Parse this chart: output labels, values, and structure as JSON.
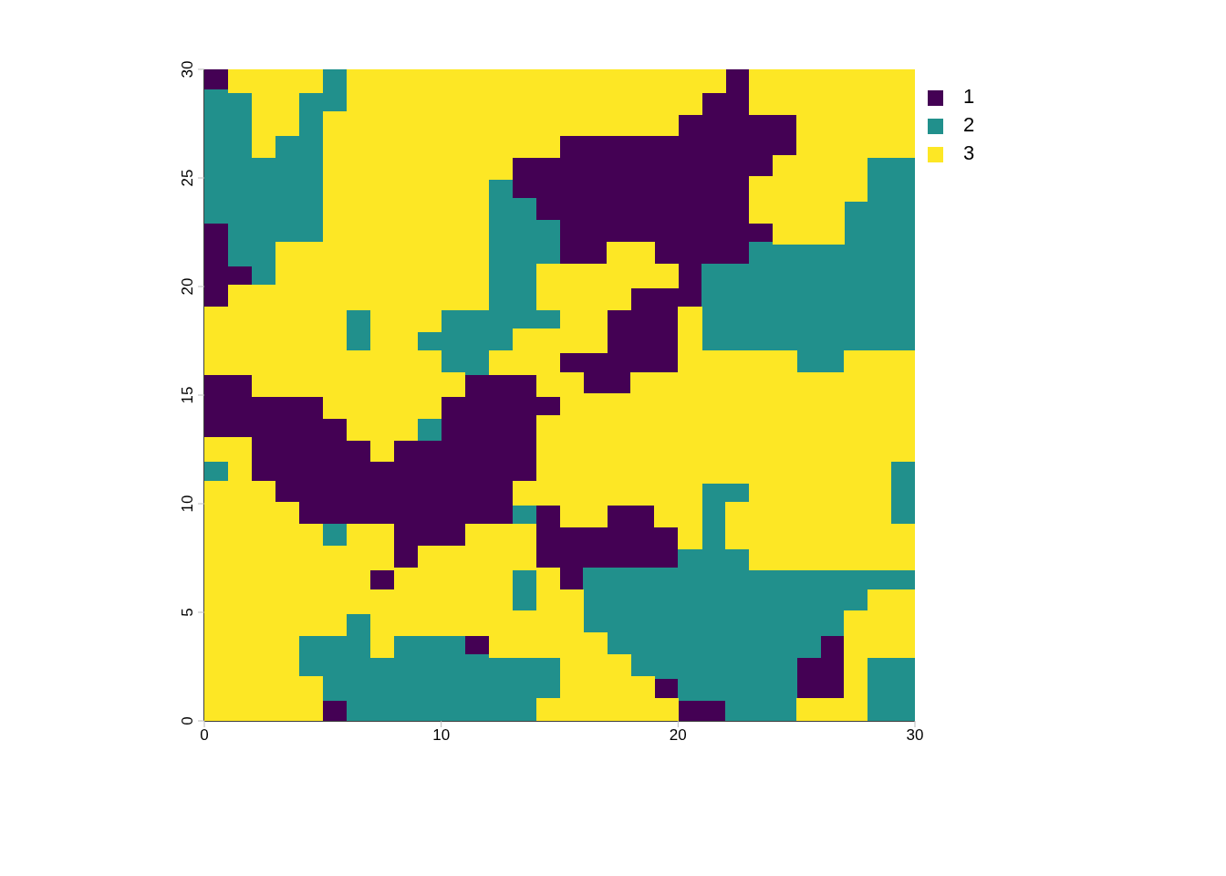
{
  "chart_data": {
    "type": "scatter",
    "xlim": [
      0,
      30
    ],
    "xticks": [
      0,
      10,
      20,
      30
    ],
    "ylim": [
      0,
      30
    ],
    "yticks": [
      0,
      5,
      10,
      15,
      20,
      25,
      30
    ],
    "legend": "top right",
    "marker": "square",
    "series": [
      {
        "name": "1",
        "color": "#440154",
        "x": [
          0.5,
          22.5,
          21.5,
          22.5,
          20.5,
          21.5,
          22.5,
          23.5,
          24.5,
          15.5,
          16.5,
          17.5,
          18.5,
          19.5,
          20.5,
          21.5,
          22.5,
          23.5,
          24.5,
          13.5,
          14.5,
          15.5,
          16.5,
          17.5,
          18.5,
          19.5,
          20.5,
          21.5,
          22.5,
          23.5,
          13.5,
          14.5,
          15.5,
          16.5,
          17.5,
          18.5,
          19.5,
          20.5,
          21.5,
          22.5,
          14.5,
          15.5,
          16.5,
          17.5,
          18.5,
          19.5,
          20.5,
          21.5,
          22.5,
          0.5,
          15.5,
          16.5,
          17.5,
          18.5,
          19.5,
          20.5,
          21.5,
          22.5,
          23.5,
          0.5,
          15.5,
          16.5,
          19.5,
          20.5,
          21.5,
          22.5,
          0.5,
          1.5,
          20.5,
          0.5,
          18.5,
          19.5,
          20.5,
          17.5,
          18.5,
          19.5,
          17.5,
          18.5,
          19.5,
          15.5,
          16.5,
          17.5,
          18.5,
          19.5,
          0.5,
          1.5,
          11.5,
          12.5,
          13.5,
          16.5,
          17.5,
          0.5,
          1.5,
          2.5,
          3.5,
          4.5,
          10.5,
          11.5,
          12.5,
          13.5,
          14.5,
          0.5,
          1.5,
          2.5,
          3.5,
          4.5,
          5.5,
          10.5,
          11.5,
          12.5,
          13.5,
          2.5,
          3.5,
          4.5,
          5.5,
          6.5,
          8.5,
          9.5,
          10.5,
          11.5,
          12.5,
          13.5,
          2.5,
          3.5,
          4.5,
          5.5,
          6.5,
          7.5,
          8.5,
          9.5,
          10.5,
          11.5,
          12.5,
          13.5,
          3.5,
          4.5,
          5.5,
          6.5,
          7.5,
          8.5,
          9.5,
          10.5,
          11.5,
          12.5,
          4.5,
          5.5,
          6.5,
          7.5,
          8.5,
          9.5,
          10.5,
          11.5,
          12.5,
          14.5,
          17.5,
          18.5,
          8.5,
          9.5,
          10.5,
          14.5,
          15.5,
          16.5,
          17.5,
          18.5,
          19.5,
          8.5,
          14.5,
          15.5,
          16.5,
          17.5,
          18.5,
          19.5,
          7.5,
          15.5,
          11.5,
          26.5,
          25.5,
          26.5,
          19.5,
          25.5,
          26.5,
          5.5,
          20.5,
          21.5
        ],
        "values": [
          29.5,
          29.5,
          28.5,
          28.5,
          27.5,
          27.5,
          27.5,
          27.5,
          27.5,
          26.5,
          26.5,
          26.5,
          26.5,
          26.5,
          26.5,
          26.5,
          26.5,
          26.5,
          26.5,
          25.5,
          25.5,
          25.5,
          25.5,
          25.5,
          25.5,
          25.5,
          25.5,
          25.5,
          25.5,
          25.5,
          24.5,
          24.5,
          24.5,
          24.5,
          24.5,
          24.5,
          24.5,
          24.5,
          24.5,
          24.5,
          23.5,
          23.5,
          23.5,
          23.5,
          23.5,
          23.5,
          23.5,
          23.5,
          23.5,
          22.5,
          22.5,
          22.5,
          22.5,
          22.5,
          22.5,
          22.5,
          22.5,
          22.5,
          22.5,
          21.5,
          21.5,
          21.5,
          21.5,
          21.5,
          21.5,
          21.5,
          20.5,
          20.5,
          20.5,
          19.5,
          19.5,
          19.5,
          19.5,
          18.5,
          18.5,
          18.5,
          17.5,
          17.5,
          17.5,
          16.5,
          16.5,
          16.5,
          16.5,
          16.5,
          15.5,
          15.5,
          15.5,
          15.5,
          15.5,
          15.5,
          15.5,
          14.5,
          14.5,
          14.5,
          14.5,
          14.5,
          14.5,
          14.5,
          14.5,
          14.5,
          14.5,
          13.5,
          13.5,
          13.5,
          13.5,
          13.5,
          13.5,
          13.5,
          13.5,
          13.5,
          13.5,
          12.5,
          12.5,
          12.5,
          12.5,
          12.5,
          12.5,
          12.5,
          12.5,
          12.5,
          12.5,
          12.5,
          11.5,
          11.5,
          11.5,
          11.5,
          11.5,
          11.5,
          11.5,
          11.5,
          11.5,
          11.5,
          11.5,
          11.5,
          10.5,
          10.5,
          10.5,
          10.5,
          10.5,
          10.5,
          10.5,
          10.5,
          10.5,
          10.5,
          9.5,
          9.5,
          9.5,
          9.5,
          9.5,
          9.5,
          9.5,
          9.5,
          9.5,
          9.5,
          9.5,
          9.5,
          8.5,
          8.5,
          8.5,
          8.5,
          8.5,
          8.5,
          8.5,
          8.5,
          8.5,
          7.5,
          7.5,
          7.5,
          7.5,
          7.5,
          7.5,
          7.5,
          6.5,
          6.5,
          3.5,
          3.5,
          2.5,
          2.5,
          1.5,
          1.5,
          1.5,
          0.5,
          0.5,
          0.5
        ]
      },
      {
        "name": "2",
        "color": "#21908c",
        "x": [
          5.5,
          0.5,
          1.5,
          4.5,
          5.5,
          0.5,
          1.5,
          4.5,
          0.5,
          1.5,
          3.5,
          4.5,
          0.5,
          1.5,
          2.5,
          3.5,
          4.5,
          28.5,
          29.5,
          0.5,
          1.5,
          2.5,
          3.5,
          4.5,
          12.5,
          28.5,
          29.5,
          0.5,
          1.5,
          2.5,
          3.5,
          4.5,
          12.5,
          13.5,
          27.5,
          28.5,
          29.5,
          1.5,
          2.5,
          3.5,
          4.5,
          12.5,
          13.5,
          14.5,
          27.5,
          28.5,
          29.5,
          1.5,
          2.5,
          12.5,
          13.5,
          14.5,
          23.5,
          24.5,
          25.5,
          26.5,
          27.5,
          28.5,
          29.5,
          2.5,
          12.5,
          13.5,
          21.5,
          22.5,
          23.5,
          24.5,
          25.5,
          26.5,
          27.5,
          28.5,
          29.5,
          12.5,
          13.5,
          21.5,
          22.5,
          23.5,
          24.5,
          25.5,
          26.5,
          27.5,
          28.5,
          29.5,
          6.5,
          10.5,
          11.5,
          12.5,
          13.5,
          14.5,
          21.5,
          22.5,
          23.5,
          24.5,
          25.5,
          26.5,
          27.5,
          28.5,
          29.5,
          6.5,
          9.5,
          10.5,
          11.5,
          12.5,
          21.5,
          22.5,
          23.5,
          24.5,
          25.5,
          26.5,
          27.5,
          28.5,
          29.5,
          10.5,
          11.5,
          25.5,
          26.5,
          9.5,
          0.5,
          29.5,
          21.5,
          22.5,
          29.5,
          13.5,
          21.5,
          29.5,
          5.5,
          21.5,
          20.5,
          21.5,
          22.5,
          13.5,
          16.5,
          17.5,
          18.5,
          19.5,
          20.5,
          21.5,
          22.5,
          23.5,
          24.5,
          25.5,
          26.5,
          27.5,
          28.5,
          29.5,
          13.5,
          16.5,
          17.5,
          18.5,
          19.5,
          20.5,
          21.5,
          22.5,
          23.5,
          24.5,
          25.5,
          26.5,
          27.5,
          6.5,
          16.5,
          17.5,
          18.5,
          19.5,
          20.5,
          21.5,
          22.5,
          23.5,
          24.5,
          25.5,
          26.5,
          4.5,
          5.5,
          6.5,
          8.5,
          9.5,
          10.5,
          17.5,
          18.5,
          19.5,
          20.5,
          21.5,
          22.5,
          23.5,
          24.5,
          25.5,
          4.5,
          5.5,
          6.5,
          7.5,
          8.5,
          9.5,
          10.5,
          11.5,
          12.5,
          13.5,
          14.5,
          18.5,
          19.5,
          20.5,
          21.5,
          22.5,
          23.5,
          24.5,
          28.5,
          29.5,
          5.5,
          6.5,
          7.5,
          8.5,
          9.5,
          10.5,
          11.5,
          12.5,
          13.5,
          14.5,
          20.5,
          21.5,
          22.5,
          23.5,
          24.5,
          28.5,
          29.5,
          6.5,
          7.5,
          8.5,
          9.5,
          10.5,
          11.5,
          12.5,
          13.5,
          22.5,
          23.5,
          24.5,
          28.5,
          29.5
        ],
        "values": [
          29.5,
          28.5,
          28.5,
          28.5,
          28.5,
          27.5,
          27.5,
          27.5,
          26.5,
          26.5,
          26.5,
          26.5,
          25.5,
          25.5,
          25.5,
          25.5,
          25.5,
          25.5,
          25.5,
          24.5,
          24.5,
          24.5,
          24.5,
          24.5,
          24.5,
          24.5,
          24.5,
          23.5,
          23.5,
          23.5,
          23.5,
          23.5,
          23.5,
          23.5,
          23.5,
          23.5,
          23.5,
          22.5,
          22.5,
          22.5,
          22.5,
          22.5,
          22.5,
          22.5,
          22.5,
          22.5,
          22.5,
          21.5,
          21.5,
          21.5,
          21.5,
          21.5,
          21.5,
          21.5,
          21.5,
          21.5,
          21.5,
          21.5,
          21.5,
          20.5,
          20.5,
          20.5,
          20.5,
          20.5,
          20.5,
          20.5,
          20.5,
          20.5,
          20.5,
          20.5,
          20.5,
          19.5,
          19.5,
          19.5,
          19.5,
          19.5,
          19.5,
          19.5,
          19.5,
          19.5,
          19.5,
          19.5,
          18.5,
          18.5,
          18.5,
          18.5,
          18.5,
          18.5,
          18.5,
          18.5,
          18.5,
          18.5,
          18.5,
          18.5,
          18.5,
          18.5,
          18.5,
          17.5,
          17.5,
          17.5,
          17.5,
          17.5,
          17.5,
          17.5,
          17.5,
          17.5,
          17.5,
          17.5,
          17.5,
          17.5,
          17.5,
          16.5,
          16.5,
          16.5,
          16.5,
          13.5,
          11.5,
          11.5,
          10.5,
          10.5,
          10.5,
          9.5,
          9.5,
          9.5,
          8.5,
          8.5,
          7.5,
          7.5,
          7.5,
          6.5,
          6.5,
          6.5,
          6.5,
          6.5,
          6.5,
          6.5,
          6.5,
          6.5,
          6.5,
          6.5,
          6.5,
          6.5,
          6.5,
          6.5,
          5.5,
          5.5,
          5.5,
          5.5,
          5.5,
          5.5,
          5.5,
          5.5,
          5.5,
          5.5,
          5.5,
          5.5,
          5.5,
          4.5,
          4.5,
          4.5,
          4.5,
          4.5,
          4.5,
          4.5,
          4.5,
          4.5,
          4.5,
          4.5,
          4.5,
          3.5,
          3.5,
          3.5,
          3.5,
          3.5,
          3.5,
          3.5,
          3.5,
          3.5,
          3.5,
          3.5,
          3.5,
          3.5,
          3.5,
          3.5,
          2.5,
          2.5,
          2.5,
          2.5,
          2.5,
          2.5,
          2.5,
          2.5,
          2.5,
          2.5,
          2.5,
          2.5,
          2.5,
          2.5,
          2.5,
          2.5,
          2.5,
          2.5,
          2.5,
          2.5,
          1.5,
          1.5,
          1.5,
          1.5,
          1.5,
          1.5,
          1.5,
          1.5,
          1.5,
          1.5,
          1.5,
          1.5,
          1.5,
          1.5,
          1.5,
          1.5,
          1.5,
          0.5,
          0.5,
          0.5,
          0.5,
          0.5,
          0.5,
          0.5,
          0.5,
          0.5,
          0.5,
          0.5,
          0.5,
          0.5
        ]
      },
      {
        "name": "3",
        "color": "#fde725",
        "x": [
          1.5,
          2.5,
          3.5,
          4.5,
          6.5,
          7.5,
          8.5,
          9.5,
          10.5,
          11.5,
          12.5,
          13.5,
          14.5,
          15.5,
          16.5,
          17.5,
          18.5,
          19.5,
          20.5,
          21.5,
          23.5,
          24.5,
          25.5,
          26.5,
          27.5,
          28.5,
          29.5,
          2.5,
          3.5,
          6.5,
          7.5,
          8.5,
          9.5,
          10.5,
          11.5,
          12.5,
          13.5,
          14.5,
          15.5,
          16.5,
          17.5,
          18.5,
          19.5,
          20.5,
          23.5,
          24.5,
          25.5,
          26.5,
          27.5,
          28.5,
          29.5,
          2.5,
          3.5,
          5.5,
          6.5,
          7.5,
          8.5,
          9.5,
          10.5,
          11.5,
          12.5,
          13.5,
          14.5,
          15.5,
          16.5,
          17.5,
          18.5,
          19.5,
          25.5,
          26.5,
          27.5,
          28.5,
          29.5,
          2.5,
          5.5,
          6.5,
          7.5,
          8.5,
          9.5,
          10.5,
          11.5,
          12.5,
          13.5,
          14.5,
          25.5,
          26.5,
          27.5,
          28.5,
          29.5,
          5.5,
          6.5,
          7.5,
          8.5,
          9.5,
          10.5,
          11.5,
          12.5,
          24.5,
          25.5,
          26.5,
          27.5,
          5.5,
          6.5,
          7.5,
          8.5,
          9.5,
          10.5,
          11.5,
          23.5,
          24.5,
          25.5,
          26.5,
          27.5,
          5.5,
          6.5,
          7.5,
          8.5,
          9.5,
          10.5,
          11.5,
          23.5,
          24.5,
          25.5,
          26.5,
          5.5,
          6.5,
          7.5,
          8.5,
          9.5,
          10.5,
          11.5,
          24.5,
          25.5,
          26.5,
          3.5,
          4.5,
          5.5,
          6.5,
          7.5,
          8.5,
          9.5,
          10.5,
          11.5,
          17.5,
          18.5,
          3.5,
          4.5,
          5.5,
          6.5,
          7.5,
          8.5,
          9.5,
          10.5,
          11.5,
          14.5,
          15.5,
          16.5,
          17.5,
          18.5,
          19.5,
          1.5,
          2.5,
          3.5,
          4.5,
          5.5,
          6.5,
          7.5,
          8.5,
          9.5,
          10.5,
          11.5,
          14.5,
          15.5,
          16.5,
          17.5,
          0.5,
          1.5,
          2.5,
          3.5,
          4.5,
          5.5,
          7.5,
          8.5,
          9.5,
          15.5,
          16.5,
          20.5,
          0.5,
          1.5,
          2.5,
          3.5,
          4.5,
          5.5,
          7.5,
          8.5,
          13.5,
          14.5,
          15.5,
          16.5,
          20.5,
          0.5,
          1.5,
          2.5,
          3.5,
          4.5,
          5.5,
          6.5,
          7.5,
          8.5,
          9.5,
          12.5,
          13.5,
          14.5,
          20.5,
          21.5,
          22.5,
          23.5,
          24.5,
          27.5,
          28.5,
          29.5,
          2.5,
          3.5,
          4.5,
          5.5,
          6.5,
          7.5,
          8.5,
          9.5,
          10.5,
          14.5,
          15.5,
          18.5,
          19.5,
          20.5,
          21.5,
          22.5,
          23.5,
          24.5,
          25.5,
          26.5,
          27.5,
          28.5,
          29.5,
          5.5,
          6.5,
          7.5,
          8.5,
          9.5,
          15.5,
          16.5,
          17.5,
          18.5,
          19.5,
          20.5,
          21.5,
          22.5,
          23.5,
          24.5,
          25.5,
          26.5,
          27.5,
          28.5,
          29.5,
          6.5,
          7.5,
          8.5,
          14.5,
          15.5,
          16.5,
          17.5,
          18.5,
          19.5,
          20.5,
          21.5,
          22.5,
          23.5,
          24.5,
          25.5,
          26.5,
          27.5,
          28.5,
          29.5,
          0.5,
          1.5,
          7.5,
          14.5,
          15.5,
          16.5,
          17.5,
          18.5,
          19.5,
          20.5,
          21.5,
          22.5,
          23.5,
          24.5,
          25.5,
          26.5,
          27.5,
          28.5,
          29.5,
          1.5,
          14.5,
          15.5,
          16.5,
          17.5,
          18.5,
          19.5,
          20.5,
          21.5,
          22.5,
          23.5,
          24.5,
          25.5,
          26.5,
          27.5,
          28.5,
          0.5,
          1.5,
          2.5,
          13.5,
          14.5,
          15.5,
          16.5,
          17.5,
          18.5,
          19.5,
          20.5,
          23.5,
          24.5,
          25.5,
          26.5,
          27.5,
          28.5,
          0.5,
          1.5,
          2.5,
          3.5,
          15.5,
          16.5,
          19.5,
          20.5,
          22.5,
          23.5,
          24.5,
          25.5,
          26.5,
          27.5,
          28.5,
          0.5,
          1.5,
          2.5,
          3.5,
          4.5,
          6.5,
          7.5,
          11.5,
          12.5,
          13.5,
          20.5,
          22.5,
          23.5,
          24.5,
          25.5,
          26.5,
          27.5,
          28.5,
          29.5,
          0.5,
          1.5,
          2.5,
          3.5,
          4.5,
          5.5,
          6.5,
          7.5,
          9.5,
          10.5,
          11.5,
          12.5,
          13.5,
          23.5,
          24.5,
          25.5,
          26.5,
          27.5,
          28.5,
          29.5,
          0.5,
          1.5,
          2.5,
          3.5,
          4.5,
          5.5,
          6.5,
          8.5,
          9.5,
          10.5,
          11.5,
          12.5,
          14.5,
          0.5,
          1.5,
          2.5,
          3.5,
          4.5,
          5.5,
          6.5,
          7.5,
          8.5,
          9.5,
          10.5,
          11.5,
          12.5,
          14.5,
          15.5,
          28.5,
          29.5,
          0.5,
          1.5,
          2.5,
          3.5,
          4.5,
          5.5,
          7.5,
          8.5,
          9.5,
          10.5,
          11.5,
          12.5,
          13.5,
          14.5,
          15.5,
          27.5,
          28.5,
          29.5,
          0.5,
          1.5,
          2.5,
          3.5,
          7.5,
          12.5,
          13.5,
          14.5,
          15.5,
          16.5,
          27.5,
          28.5,
          29.5,
          0.5,
          1.5,
          2.5,
          3.5,
          15.5,
          16.5,
          17.5,
          27.5,
          0.5,
          1.5,
          2.5,
          3.5,
          4.5,
          15.5,
          16.5,
          17.5,
          18.5,
          27.5,
          0.5,
          1.5,
          2.5,
          3.5,
          4.5,
          14.5,
          15.5,
          16.5,
          17.5,
          18.5,
          19.5,
          25.5,
          26.5,
          27.5
        ],
        "values": [
          29.5,
          29.5,
          29.5,
          29.5,
          29.5,
          29.5,
          29.5,
          29.5,
          29.5,
          29.5,
          29.5,
          29.5,
          29.5,
          29.5,
          29.5,
          29.5,
          29.5,
          29.5,
          29.5,
          29.5,
          29.5,
          29.5,
          29.5,
          29.5,
          29.5,
          29.5,
          29.5,
          28.5,
          28.5,
          28.5,
          28.5,
          28.5,
          28.5,
          28.5,
          28.5,
          28.5,
          28.5,
          28.5,
          28.5,
          28.5,
          28.5,
          28.5,
          28.5,
          28.5,
          28.5,
          28.5,
          28.5,
          28.5,
          28.5,
          28.5,
          28.5,
          27.5,
          27.5,
          27.5,
          27.5,
          27.5,
          27.5,
          27.5,
          27.5,
          27.5,
          27.5,
          27.5,
          27.5,
          27.5,
          27.5,
          27.5,
          27.5,
          27.5,
          27.5,
          27.5,
          27.5,
          27.5,
          27.5,
          26.5,
          26.5,
          26.5,
          26.5,
          26.5,
          26.5,
          26.5,
          26.5,
          26.5,
          26.5,
          26.5,
          26.5,
          26.5,
          26.5,
          26.5,
          26.5,
          25.5,
          25.5,
          25.5,
          25.5,
          25.5,
          25.5,
          25.5,
          25.5,
          25.5,
          25.5,
          25.5,
          25.5,
          24.5,
          24.5,
          24.5,
          24.5,
          24.5,
          24.5,
          24.5,
          24.5,
          24.5,
          24.5,
          24.5,
          24.5,
          23.5,
          23.5,
          23.5,
          23.5,
          23.5,
          23.5,
          23.5,
          23.5,
          23.5,
          23.5,
          23.5,
          22.5,
          22.5,
          22.5,
          22.5,
          22.5,
          22.5,
          22.5,
          22.5,
          22.5,
          22.5,
          21.5,
          21.5,
          21.5,
          21.5,
          21.5,
          21.5,
          21.5,
          21.5,
          21.5,
          21.5,
          21.5,
          20.5,
          20.5,
          20.5,
          20.5,
          20.5,
          20.5,
          20.5,
          20.5,
          20.5,
          20.5,
          20.5,
          20.5,
          20.5,
          20.5,
          20.5,
          19.5,
          19.5,
          19.5,
          19.5,
          19.5,
          19.5,
          19.5,
          19.5,
          19.5,
          19.5,
          19.5,
          19.5,
          19.5,
          19.5,
          19.5,
          18.5,
          18.5,
          18.5,
          18.5,
          18.5,
          18.5,
          18.5,
          18.5,
          18.5,
          18.5,
          18.5,
          18.5,
          17.5,
          17.5,
          17.5,
          17.5,
          17.5,
          17.5,
          17.5,
          17.5,
          17.5,
          17.5,
          17.5,
          17.5,
          17.5,
          16.5,
          16.5,
          16.5,
          16.5,
          16.5,
          16.5,
          16.5,
          16.5,
          16.5,
          16.5,
          16.5,
          16.5,
          16.5,
          16.5,
          16.5,
          16.5,
          16.5,
          16.5,
          16.5,
          16.5,
          16.5,
          15.5,
          15.5,
          15.5,
          15.5,
          15.5,
          15.5,
          15.5,
          15.5,
          15.5,
          15.5,
          15.5,
          15.5,
          15.5,
          15.5,
          15.5,
          15.5,
          15.5,
          15.5,
          15.5,
          15.5,
          15.5,
          15.5,
          15.5,
          14.5,
          14.5,
          14.5,
          14.5,
          14.5,
          14.5,
          14.5,
          14.5,
          14.5,
          14.5,
          14.5,
          14.5,
          14.5,
          14.5,
          14.5,
          14.5,
          14.5,
          14.5,
          14.5,
          14.5,
          13.5,
          13.5,
          13.5,
          13.5,
          13.5,
          13.5,
          13.5,
          13.5,
          13.5,
          13.5,
          13.5,
          13.5,
          13.5,
          13.5,
          13.5,
          13.5,
          13.5,
          13.5,
          13.5,
          12.5,
          12.5,
          12.5,
          12.5,
          12.5,
          12.5,
          12.5,
          12.5,
          12.5,
          12.5,
          12.5,
          12.5,
          12.5,
          12.5,
          12.5,
          12.5,
          12.5,
          12.5,
          12.5,
          11.5,
          11.5,
          11.5,
          11.5,
          11.5,
          11.5,
          11.5,
          11.5,
          11.5,
          11.5,
          11.5,
          11.5,
          11.5,
          11.5,
          11.5,
          11.5,
          10.5,
          10.5,
          10.5,
          10.5,
          10.5,
          10.5,
          10.5,
          10.5,
          10.5,
          10.5,
          10.5,
          10.5,
          10.5,
          10.5,
          10.5,
          10.5,
          10.5,
          9.5,
          9.5,
          9.5,
          9.5,
          9.5,
          9.5,
          9.5,
          9.5,
          9.5,
          9.5,
          9.5,
          9.5,
          9.5,
          9.5,
          9.5,
          8.5,
          8.5,
          8.5,
          8.5,
          8.5,
          8.5,
          8.5,
          8.5,
          8.5,
          8.5,
          8.5,
          8.5,
          8.5,
          8.5,
          8.5,
          8.5,
          8.5,
          8.5,
          8.5,
          7.5,
          7.5,
          7.5,
          7.5,
          7.5,
          7.5,
          7.5,
          7.5,
          7.5,
          7.5,
          7.5,
          7.5,
          7.5,
          7.5,
          7.5,
          7.5,
          7.5,
          7.5,
          7.5,
          7.5,
          6.5,
          6.5,
          6.5,
          6.5,
          6.5,
          6.5,
          6.5,
          6.5,
          6.5,
          6.5,
          6.5,
          6.5,
          6.5,
          5.5,
          5.5,
          5.5,
          5.5,
          5.5,
          5.5,
          5.5,
          5.5,
          5.5,
          5.5,
          5.5,
          5.5,
          5.5,
          5.5,
          5.5,
          5.5,
          5.5,
          4.5,
          4.5,
          4.5,
          4.5,
          4.5,
          4.5,
          4.5,
          4.5,
          4.5,
          4.5,
          4.5,
          4.5,
          4.5,
          4.5,
          4.5,
          4.5,
          4.5,
          4.5,
          3.5,
          3.5,
          3.5,
          3.5,
          3.5,
          3.5,
          3.5,
          3.5,
          3.5,
          3.5,
          3.5,
          3.5,
          3.5,
          2.5,
          2.5,
          2.5,
          2.5,
          2.5,
          2.5,
          2.5,
          2.5,
          1.5,
          1.5,
          1.5,
          1.5,
          1.5,
          1.5,
          1.5,
          1.5,
          1.5,
          1.5,
          0.5,
          0.5,
          0.5,
          0.5,
          0.5,
          0.5,
          0.5,
          0.5,
          0.5,
          0.5,
          0.5,
          0.5,
          0.5,
          0.5
        ]
      }
    ]
  }
}
